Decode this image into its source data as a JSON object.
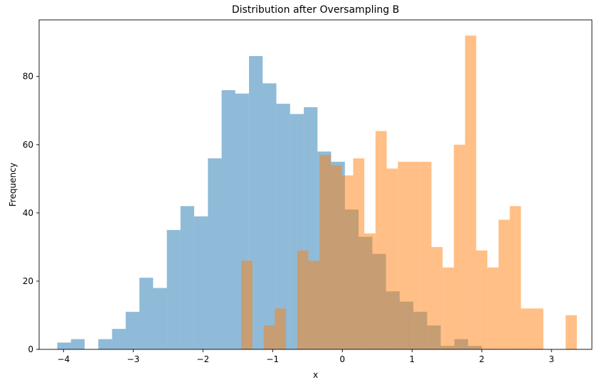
{
  "chart_data": {
    "type": "bar",
    "title": "Distribution after Oversampling B",
    "xlabel": "x",
    "ylabel": "Frequency",
    "xlim": [
      -4.35,
      3.58
    ],
    "ylim": [
      0,
      96.6
    ],
    "xticks": [
      -4,
      -3,
      -2,
      -1,
      0,
      1,
      2,
      3
    ],
    "xtick_labels": [
      "−4",
      "−3",
      "−2",
      "−1",
      "0",
      "1",
      "2",
      "3"
    ],
    "yticks": [
      0,
      20,
      40,
      60,
      80
    ],
    "ytick_labels": [
      "0",
      "20",
      "40",
      "60",
      "80"
    ],
    "grid": false,
    "legend": "none",
    "series": [
      {
        "color": "#1f77b4",
        "opacity": 0.5,
        "bin_width": 0.1965,
        "bins": [
          [
            -4.09,
            2
          ],
          [
            -3.894,
            3
          ],
          [
            -3.697,
            0
          ],
          [
            -3.501,
            3
          ],
          [
            -3.304,
            6
          ],
          [
            -3.108,
            11
          ],
          [
            -2.911,
            21
          ],
          [
            -2.715,
            18
          ],
          [
            -2.518,
            35
          ],
          [
            -2.322,
            42
          ],
          [
            -2.125,
            39
          ],
          [
            -1.929,
            56
          ],
          [
            -1.732,
            76
          ],
          [
            -1.536,
            75
          ],
          [
            -1.339,
            86
          ],
          [
            -1.143,
            78
          ],
          [
            -0.946,
            72
          ],
          [
            -0.75,
            69
          ],
          [
            -0.553,
            71
          ],
          [
            -0.357,
            58
          ],
          [
            -0.16,
            55
          ],
          [
            0.036,
            41
          ],
          [
            0.233,
            33
          ],
          [
            0.429,
            28
          ],
          [
            0.626,
            17
          ],
          [
            0.822,
            14
          ],
          [
            1.019,
            11
          ],
          [
            1.215,
            7
          ],
          [
            1.412,
            1
          ],
          [
            1.608,
            3
          ],
          [
            1.805,
            1
          ]
        ]
      },
      {
        "color": "#ff7f0e",
        "opacity": 0.5,
        "bin_width": 0.1605,
        "bins": [
          [
            -1.45,
            26
          ],
          [
            -1.29,
            0
          ],
          [
            -1.129,
            7
          ],
          [
            -0.969,
            12
          ],
          [
            -0.808,
            0
          ],
          [
            -0.648,
            29
          ],
          [
            -0.487,
            26
          ],
          [
            -0.327,
            57
          ],
          [
            -0.166,
            54
          ],
          [
            -0.006,
            51
          ],
          [
            0.155,
            56
          ],
          [
            0.315,
            34
          ],
          [
            0.476,
            64
          ],
          [
            0.636,
            53
          ],
          [
            0.797,
            55
          ],
          [
            0.957,
            55
          ],
          [
            1.118,
            55
          ],
          [
            1.278,
            30
          ],
          [
            1.439,
            24
          ],
          [
            1.599,
            60
          ],
          [
            1.76,
            92
          ],
          [
            1.92,
            29
          ],
          [
            2.081,
            24
          ],
          [
            2.241,
            38
          ],
          [
            2.402,
            42
          ],
          [
            2.562,
            12
          ],
          [
            2.723,
            12
          ],
          [
            2.883,
            0
          ],
          [
            3.044,
            0
          ],
          [
            3.204,
            10
          ]
        ]
      }
    ]
  }
}
